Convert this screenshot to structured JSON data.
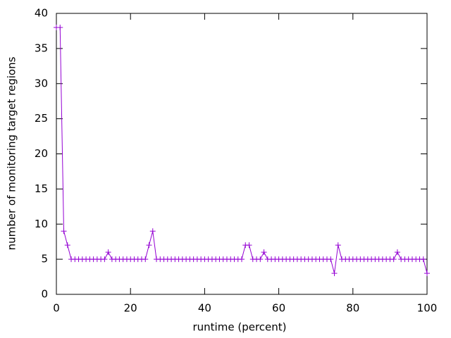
{
  "chart_data": {
    "type": "line",
    "xlabel": "runtime (percent)",
    "ylabel": "number of monitoring target regions",
    "x": [
      0,
      1,
      2,
      3,
      4,
      5,
      6,
      7,
      8,
      9,
      10,
      11,
      12,
      13,
      14,
      15,
      16,
      17,
      18,
      19,
      20,
      21,
      22,
      23,
      24,
      25,
      26,
      27,
      28,
      29,
      30,
      31,
      32,
      33,
      34,
      35,
      36,
      37,
      38,
      39,
      40,
      41,
      42,
      43,
      44,
      45,
      46,
      47,
      48,
      49,
      50,
      51,
      52,
      53,
      54,
      55,
      56,
      57,
      58,
      59,
      60,
      61,
      62,
      63,
      64,
      65,
      66,
      67,
      68,
      69,
      70,
      71,
      72,
      73,
      74,
      75,
      76,
      77,
      78,
      79,
      80,
      81,
      82,
      83,
      84,
      85,
      86,
      87,
      88,
      89,
      90,
      91,
      92,
      93,
      94,
      95,
      96,
      97,
      98,
      99,
      100
    ],
    "series": [
      {
        "color": "#9400d3",
        "marker": "+",
        "values": [
          38,
          38,
          9,
          7,
          5,
          5,
          5,
          5,
          5,
          5,
          5,
          5,
          5,
          5,
          6,
          5,
          5,
          5,
          5,
          5,
          5,
          5,
          5,
          5,
          5,
          7,
          9,
          5,
          5,
          5,
          5,
          5,
          5,
          5,
          5,
          5,
          5,
          5,
          5,
          5,
          5,
          5,
          5,
          5,
          5,
          5,
          5,
          5,
          5,
          5,
          5,
          7,
          7,
          5,
          5,
          5,
          6,
          5,
          5,
          5,
          5,
          5,
          5,
          5,
          5,
          5,
          5,
          5,
          5,
          5,
          5,
          5,
          5,
          5,
          5,
          3,
          7,
          5,
          5,
          5,
          5,
          5,
          5,
          5,
          5,
          5,
          5,
          5,
          5,
          5,
          5,
          5,
          6,
          5,
          5,
          5,
          5,
          5,
          5,
          5,
          3
        ]
      }
    ],
    "xlim": [
      0,
      100
    ],
    "xticks": [
      0,
      20,
      40,
      60,
      80,
      100
    ],
    "ylim": [
      0,
      40
    ],
    "yticks": [
      0,
      5,
      10,
      15,
      20,
      25,
      30,
      35,
      40
    ],
    "grid": false
  }
}
